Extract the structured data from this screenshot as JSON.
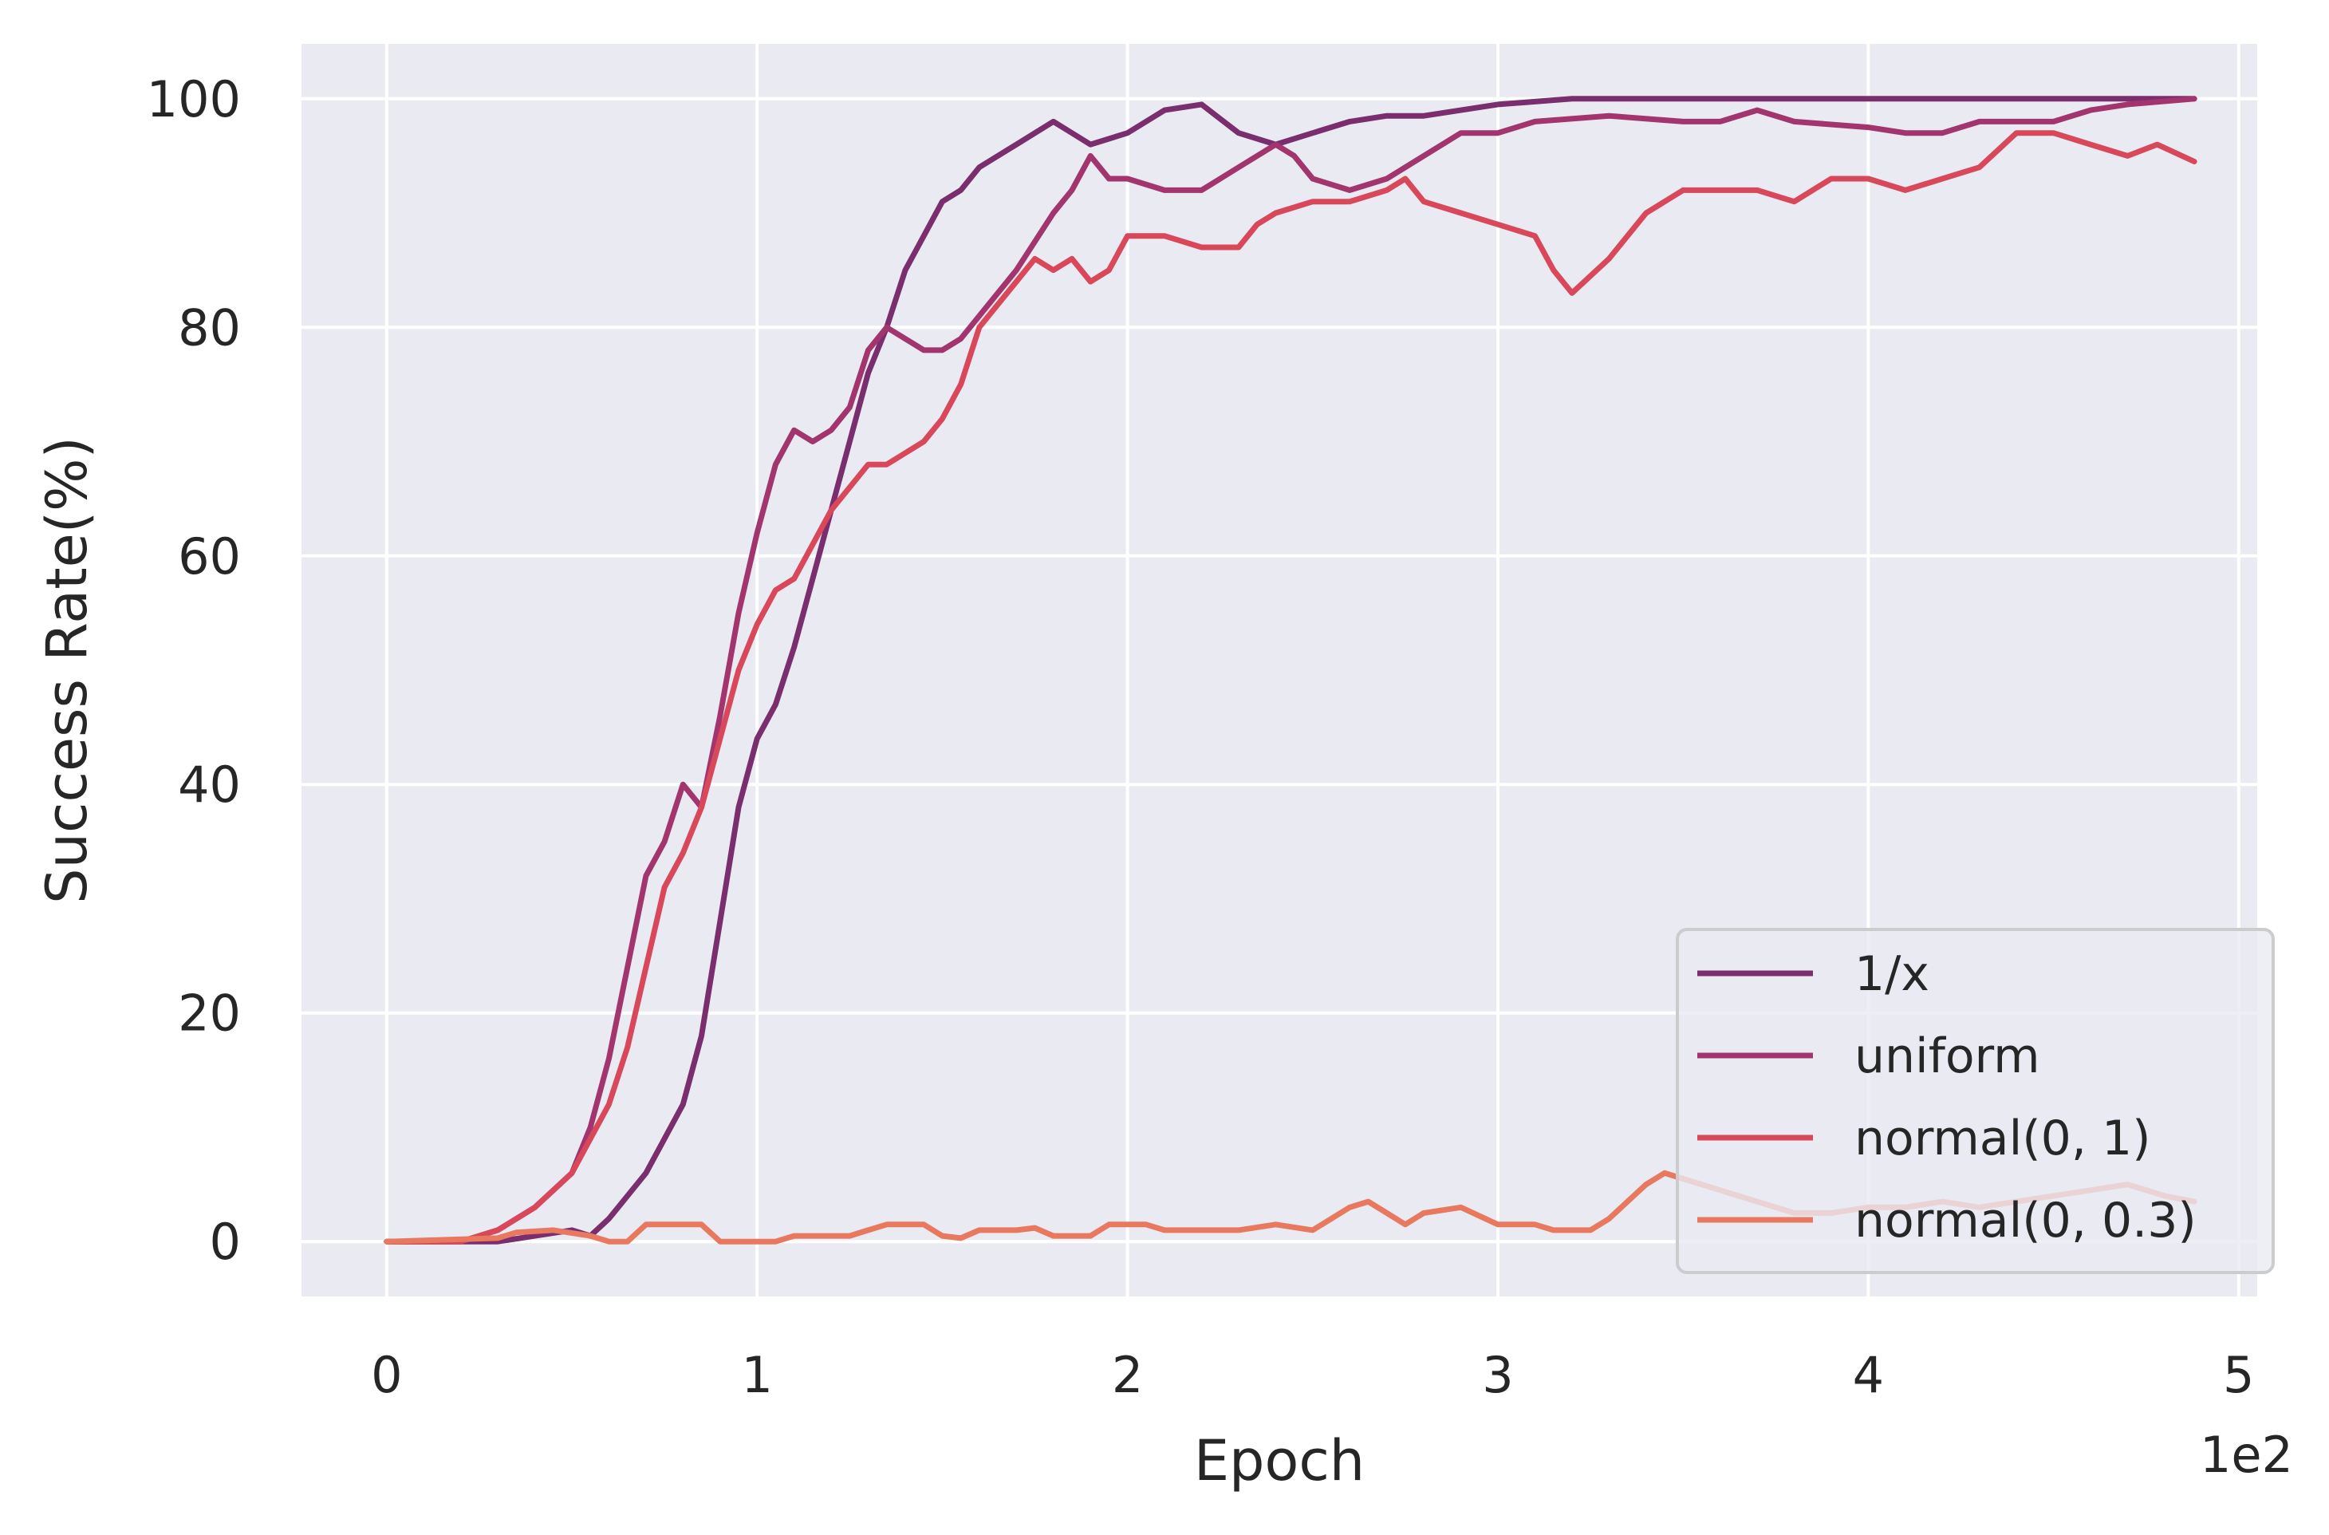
{
  "chart_data": {
    "type": "line",
    "title": "",
    "xlabel": "Epoch",
    "ylabel": "Success Rate(%)",
    "x_offset_label": "1e2",
    "xlim": [
      -0.23,
      5.05
    ],
    "ylim": [
      -4.8,
      104.8
    ],
    "x_ticks": [
      0,
      1,
      2,
      3,
      4,
      5
    ],
    "x_tick_labels": [
      "0",
      "1",
      "2",
      "3",
      "4",
      "5"
    ],
    "y_ticks": [
      0,
      20,
      40,
      60,
      80,
      100
    ],
    "y_tick_labels": [
      "0",
      "20",
      "40",
      "60",
      "80",
      "100"
    ],
    "grid": true,
    "legend_position": "lower-right",
    "background": "#eaeaf2",
    "series": [
      {
        "name": "1/x",
        "color": "#7a2e6e",
        "points": [
          [
            0,
            0
          ],
          [
            0.2,
            0
          ],
          [
            0.3,
            0
          ],
          [
            0.4,
            0.5
          ],
          [
            0.5,
            1
          ],
          [
            0.55,
            0.5
          ],
          [
            0.6,
            2
          ],
          [
            0.65,
            4
          ],
          [
            0.7,
            6
          ],
          [
            0.75,
            9
          ],
          [
            0.8,
            12
          ],
          [
            0.85,
            18
          ],
          [
            0.9,
            28
          ],
          [
            0.95,
            38
          ],
          [
            1.0,
            44
          ],
          [
            1.05,
            47
          ],
          [
            1.1,
            52
          ],
          [
            1.15,
            58
          ],
          [
            1.2,
            64
          ],
          [
            1.25,
            70
          ],
          [
            1.3,
            76
          ],
          [
            1.35,
            80
          ],
          [
            1.4,
            85
          ],
          [
            1.45,
            88
          ],
          [
            1.5,
            91
          ],
          [
            1.55,
            92
          ],
          [
            1.6,
            94
          ],
          [
            1.7,
            96
          ],
          [
            1.8,
            98
          ],
          [
            1.85,
            97
          ],
          [
            1.9,
            96
          ],
          [
            2.0,
            97
          ],
          [
            2.1,
            99
          ],
          [
            2.2,
            99.5
          ],
          [
            2.3,
            97
          ],
          [
            2.4,
            96
          ],
          [
            2.5,
            97
          ],
          [
            2.6,
            98
          ],
          [
            2.7,
            98.5
          ],
          [
            2.8,
            98.5
          ],
          [
            2.9,
            99
          ],
          [
            3.0,
            99.5
          ],
          [
            3.2,
            100
          ],
          [
            3.5,
            100
          ],
          [
            4.0,
            100
          ],
          [
            4.5,
            100
          ],
          [
            4.88,
            100
          ]
        ]
      },
      {
        "name": "uniform",
        "color": "#a3356e",
        "points": [
          [
            0,
            0
          ],
          [
            0.2,
            0
          ],
          [
            0.3,
            1
          ],
          [
            0.4,
            3
          ],
          [
            0.5,
            6
          ],
          [
            0.55,
            10
          ],
          [
            0.6,
            16
          ],
          [
            0.65,
            24
          ],
          [
            0.7,
            32
          ],
          [
            0.75,
            35
          ],
          [
            0.8,
            40
          ],
          [
            0.85,
            38
          ],
          [
            0.9,
            46
          ],
          [
            0.95,
            55
          ],
          [
            1.0,
            62
          ],
          [
            1.05,
            68
          ],
          [
            1.1,
            71
          ],
          [
            1.15,
            70
          ],
          [
            1.2,
            71
          ],
          [
            1.25,
            73
          ],
          [
            1.3,
            78
          ],
          [
            1.35,
            80
          ],
          [
            1.4,
            79
          ],
          [
            1.45,
            78
          ],
          [
            1.5,
            78
          ],
          [
            1.55,
            79
          ],
          [
            1.6,
            81
          ],
          [
            1.7,
            85
          ],
          [
            1.8,
            90
          ],
          [
            1.85,
            92
          ],
          [
            1.9,
            95
          ],
          [
            1.95,
            93
          ],
          [
            2.0,
            93
          ],
          [
            2.1,
            92
          ],
          [
            2.2,
            92
          ],
          [
            2.3,
            94
          ],
          [
            2.4,
            96
          ],
          [
            2.45,
            95
          ],
          [
            2.5,
            93
          ],
          [
            2.6,
            92
          ],
          [
            2.7,
            93
          ],
          [
            2.8,
            95
          ],
          [
            2.9,
            97
          ],
          [
            3.0,
            97
          ],
          [
            3.1,
            98
          ],
          [
            3.3,
            98.5
          ],
          [
            3.5,
            98
          ],
          [
            3.6,
            98
          ],
          [
            3.7,
            99
          ],
          [
            3.8,
            98
          ],
          [
            4.0,
            97.5
          ],
          [
            4.1,
            97
          ],
          [
            4.2,
            97
          ],
          [
            4.3,
            98
          ],
          [
            4.5,
            98
          ],
          [
            4.6,
            99
          ],
          [
            4.7,
            99.5
          ],
          [
            4.88,
            100
          ]
        ]
      },
      {
        "name": "normal(0, 1)",
        "color": "#d8485a",
        "points": [
          [
            0,
            0
          ],
          [
            0.2,
            0
          ],
          [
            0.3,
            1
          ],
          [
            0.4,
            3
          ],
          [
            0.5,
            6
          ],
          [
            0.55,
            9
          ],
          [
            0.6,
            12
          ],
          [
            0.65,
            17
          ],
          [
            0.7,
            24
          ],
          [
            0.75,
            31
          ],
          [
            0.8,
            34
          ],
          [
            0.85,
            38
          ],
          [
            0.9,
            44
          ],
          [
            0.95,
            50
          ],
          [
            1.0,
            54
          ],
          [
            1.05,
            57
          ],
          [
            1.1,
            58
          ],
          [
            1.15,
            61
          ],
          [
            1.2,
            64
          ],
          [
            1.25,
            66
          ],
          [
            1.3,
            68
          ],
          [
            1.35,
            68
          ],
          [
            1.4,
            69
          ],
          [
            1.45,
            70
          ],
          [
            1.5,
            72
          ],
          [
            1.55,
            75
          ],
          [
            1.6,
            80
          ],
          [
            1.65,
            82
          ],
          [
            1.7,
            84
          ],
          [
            1.75,
            86
          ],
          [
            1.8,
            85
          ],
          [
            1.85,
            86
          ],
          [
            1.9,
            84
          ],
          [
            1.95,
            85
          ],
          [
            2.0,
            88
          ],
          [
            2.1,
            88
          ],
          [
            2.2,
            87
          ],
          [
            2.3,
            87
          ],
          [
            2.35,
            89
          ],
          [
            2.4,
            90
          ],
          [
            2.5,
            91
          ],
          [
            2.6,
            91
          ],
          [
            2.7,
            92
          ],
          [
            2.75,
            93
          ],
          [
            2.8,
            91
          ],
          [
            2.9,
            90
          ],
          [
            3.0,
            89
          ],
          [
            3.1,
            88
          ],
          [
            3.15,
            85
          ],
          [
            3.2,
            83
          ],
          [
            3.3,
            86
          ],
          [
            3.4,
            90
          ],
          [
            3.5,
            92
          ],
          [
            3.6,
            92
          ],
          [
            3.7,
            92
          ],
          [
            3.8,
            91
          ],
          [
            3.9,
            93
          ],
          [
            4.0,
            93
          ],
          [
            4.1,
            92
          ],
          [
            4.2,
            93
          ],
          [
            4.3,
            94
          ],
          [
            4.4,
            97
          ],
          [
            4.5,
            97
          ],
          [
            4.6,
            96
          ],
          [
            4.7,
            95
          ],
          [
            4.78,
            96
          ],
          [
            4.88,
            94.5
          ]
        ]
      },
      {
        "name": "normal(0, 0.3)",
        "color": "#e8785e",
        "points": [
          [
            0,
            0
          ],
          [
            0.3,
            0.3
          ],
          [
            0.35,
            0.8
          ],
          [
            0.45,
            1
          ],
          [
            0.55,
            0.5
          ],
          [
            0.6,
            0
          ],
          [
            0.65,
            0
          ],
          [
            0.7,
            1.5
          ],
          [
            0.85,
            1.5
          ],
          [
            0.9,
            0
          ],
          [
            1.05,
            0
          ],
          [
            1.1,
            0.5
          ],
          [
            1.25,
            0.5
          ],
          [
            1.3,
            1
          ],
          [
            1.35,
            1.5
          ],
          [
            1.45,
            1.5
          ],
          [
            1.5,
            0.5
          ],
          [
            1.55,
            0.3
          ],
          [
            1.6,
            1
          ],
          [
            1.7,
            1
          ],
          [
            1.75,
            1.2
          ],
          [
            1.8,
            0.5
          ],
          [
            1.9,
            0.5
          ],
          [
            1.95,
            1.5
          ],
          [
            2.05,
            1.5
          ],
          [
            2.1,
            1
          ],
          [
            2.3,
            1
          ],
          [
            2.4,
            1.5
          ],
          [
            2.5,
            1
          ],
          [
            2.55,
            2
          ],
          [
            2.6,
            3
          ],
          [
            2.65,
            3.5
          ],
          [
            2.7,
            2.5
          ],
          [
            2.75,
            1.5
          ],
          [
            2.8,
            2.5
          ],
          [
            2.9,
            3
          ],
          [
            3.0,
            1.5
          ],
          [
            3.1,
            1.5
          ],
          [
            3.15,
            1
          ],
          [
            3.25,
            1
          ],
          [
            3.3,
            2
          ],
          [
            3.35,
            3.5
          ],
          [
            3.4,
            5
          ],
          [
            3.45,
            6
          ],
          [
            3.5,
            5.5
          ],
          [
            3.6,
            4.5
          ],
          [
            3.7,
            3.5
          ],
          [
            3.8,
            2.5
          ],
          [
            3.9,
            2.5
          ],
          [
            4.0,
            3
          ],
          [
            4.1,
            3
          ],
          [
            4.2,
            3.5
          ],
          [
            4.3,
            3
          ],
          [
            4.4,
            3.5
          ],
          [
            4.5,
            4
          ],
          [
            4.6,
            4.5
          ],
          [
            4.7,
            5
          ],
          [
            4.8,
            4
          ],
          [
            4.88,
            3.5
          ]
        ]
      }
    ]
  }
}
